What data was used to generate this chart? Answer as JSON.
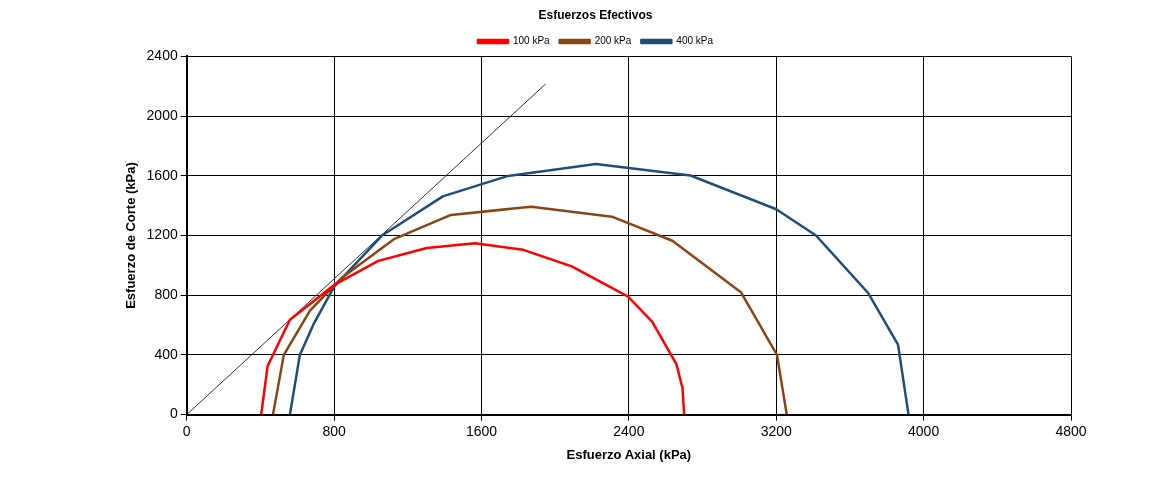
{
  "chart_data": {
    "type": "line",
    "title": "Esfuerzos Efectivos",
    "xlabel": "Esfuerzo Axial (kPa)",
    "ylabel": "Esfuerzo de Corte (kPa)",
    "xlim": [
      0,
      4800
    ],
    "xticks": [
      0,
      800,
      1600,
      2400,
      3200,
      4000,
      4800
    ],
    "ylim": [
      0,
      2400
    ],
    "yticks": [
      0,
      400,
      800,
      1200,
      1600,
      2000,
      2400
    ],
    "grid": true,
    "legend": "top",
    "marker": "none",
    "line_style": "solid",
    "series": [
      {
        "name": "100 kPa",
        "color": "#ff0000",
        "x": [
          404,
          439,
          560,
          800,
          1040,
          1303,
          1565,
          1827,
          2090,
          2396,
          2527,
          2658,
          2691,
          2700
        ],
        "values": [
          0,
          326,
          635,
          869,
          1030,
          1116,
          1148,
          1104,
          993,
          790,
          622,
          338,
          178,
          0
        ]
      },
      {
        "name": "200 kPa",
        "color": "#8b4513",
        "x": [
          468,
          527,
          669,
          844,
          1128,
          1434,
          1871,
          2308,
          2636,
          3008,
          3204,
          3257
        ],
        "values": [
          0,
          400,
          696,
          919,
          1178,
          1338,
          1393,
          1326,
          1165,
          820,
          400,
          0
        ]
      },
      {
        "name": "400 kPa",
        "color": "#1f4e79",
        "x": [
          560,
          614,
          690,
          800,
          1062,
          1390,
          1740,
          2221,
          2734,
          3200,
          3416,
          3700,
          3861,
          3918
        ],
        "values": [
          0,
          400,
          610,
          857,
          1202,
          1462,
          1598,
          1679,
          1602,
          1376,
          1200,
          813,
          469,
          0
        ]
      },
      {
        "type": "line",
        "color": "#333333",
        "x": [
          0,
          1948
        ],
        "values": [
          0,
          2215
        ]
      }
    ]
  }
}
